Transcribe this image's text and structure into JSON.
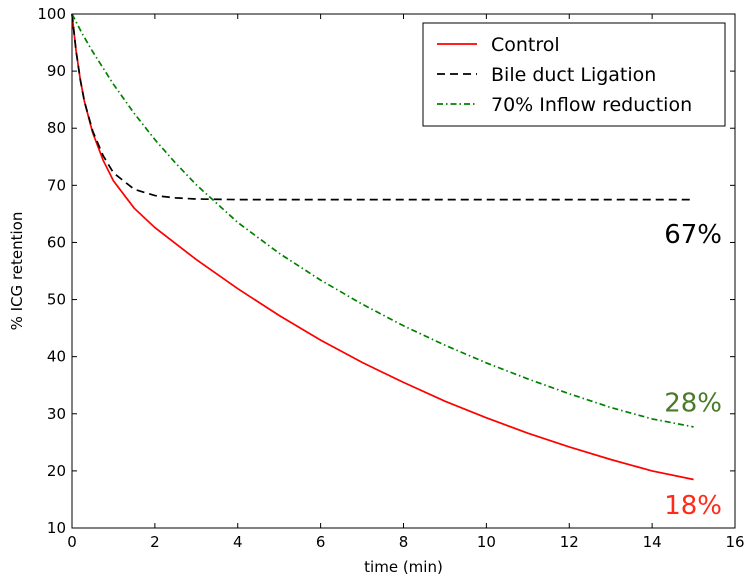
{
  "chart_data": {
    "type": "line",
    "title": "",
    "xlabel": "time (min)",
    "ylabel": "% ICG retention",
    "xlim": [
      0,
      16
    ],
    "ylim": [
      10,
      100
    ],
    "xticks": [
      0,
      2,
      4,
      6,
      8,
      10,
      12,
      14,
      16
    ],
    "yticks": [
      10,
      20,
      30,
      40,
      50,
      60,
      70,
      80,
      90,
      100
    ],
    "grid": false,
    "legend_position": "top-right",
    "series": [
      {
        "name": "Control",
        "color": "#ff0000",
        "style": "solid",
        "x": [
          0,
          0.1,
          0.2,
          0.3,
          0.5,
          0.75,
          1.0,
          1.5,
          2,
          3,
          4,
          5,
          6,
          7,
          8,
          9,
          10,
          11,
          12,
          13,
          14,
          15
        ],
        "y": [
          100,
          93.5,
          88.5,
          84.7,
          79.2,
          74.4,
          70.8,
          66,
          62.6,
          57,
          51.9,
          47.2,
          42.9,
          39,
          35.5,
          32.2,
          29.3,
          26.6,
          24.2,
          22,
          20,
          18.5
        ]
      },
      {
        "name": "Bile duct Ligation",
        "color": "#000000",
        "style": "dashed",
        "x": [
          0,
          0.1,
          0.2,
          0.3,
          0.5,
          0.75,
          1.0,
          1.5,
          2,
          2.5,
          3,
          4,
          5,
          7,
          10,
          15
        ],
        "y": [
          100,
          93.5,
          88.5,
          84.7,
          79.5,
          75.2,
          72.2,
          69.3,
          68.2,
          67.8,
          67.6,
          67.5,
          67.5,
          67.5,
          67.5,
          67.5
        ]
      },
      {
        "name": "70% Inflow reduction",
        "color": "#008000",
        "style": "dashdot",
        "x": [
          0,
          0.25,
          0.5,
          1,
          1.5,
          2,
          2.5,
          3,
          4,
          5,
          6,
          7,
          8,
          9,
          10,
          11,
          12,
          13,
          14,
          15
        ],
        "y": [
          100,
          96.5,
          93.4,
          87.7,
          82.6,
          78,
          73.9,
          70.1,
          63.5,
          58.1,
          53.4,
          49.2,
          45.4,
          42,
          38.9,
          36.1,
          33.5,
          31.1,
          29.1,
          27.7
        ]
      }
    ],
    "annotations": [
      {
        "text": "67%",
        "color": "#000000",
        "x": 15.2,
        "y": 61.5
      },
      {
        "text": "28%",
        "color": "#4a7a2a",
        "x": 15.2,
        "y": 32
      },
      {
        "text": "18%",
        "color": "#ff2a1a",
        "x": 15.2,
        "y": 14
      }
    ]
  }
}
